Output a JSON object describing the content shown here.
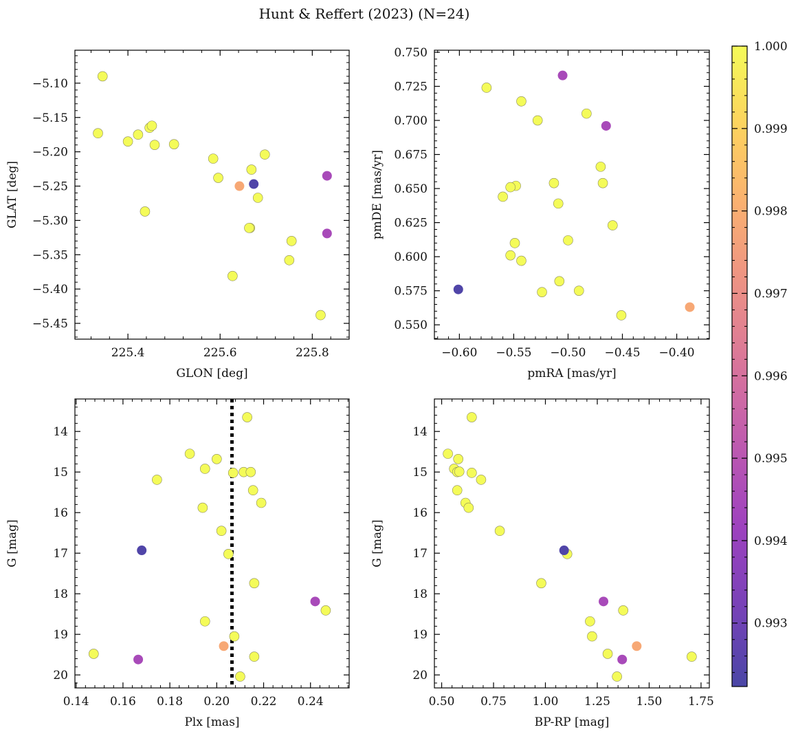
{
  "figure": {
    "title": "Hunt & Reffert (2023) (N=24)"
  },
  "colorbar": {
    "cmap": "plasma",
    "alpha": 0.75,
    "range": [
      0.99223,
      1.0
    ],
    "ticks": [
      0.993,
      0.994,
      0.995,
      0.996,
      0.997,
      0.998,
      0.999,
      1.0
    ],
    "tick_labels": [
      "0.993",
      "0.994",
      "0.995",
      "0.996",
      "0.997",
      "0.998",
      "0.999",
      "1.000"
    ]
  },
  "chart_data": [
    {
      "type": "scatter",
      "id": "glon-glat",
      "xlabel": "GLON [deg]",
      "ylabel": "GLAT [deg]",
      "xlim": [
        225.285,
        225.88
      ],
      "ylim": [
        -5.473,
        -5.052
      ],
      "y_inverted": false,
      "xticks": [
        225.4,
        225.6,
        225.8
      ],
      "xtick_labels": [
        "225.4",
        "225.6",
        "225.8"
      ],
      "yticks": [
        -5.1,
        -5.15,
        -5.2,
        -5.25,
        -5.3,
        -5.35,
        -5.4,
        -5.45
      ],
      "ytick_labels": [
        "−5.10",
        "−5.15",
        "−5.20",
        "−5.25",
        "−5.30",
        "−5.35",
        "−5.40",
        "−5.45"
      ],
      "x": [
        225.345,
        225.335,
        225.422,
        225.4,
        225.447,
        225.452,
        225.458,
        225.5,
        225.585,
        225.596,
        225.697,
        225.668,
        225.682,
        225.437,
        225.665,
        225.642,
        225.673,
        225.832,
        225.832,
        225.755,
        225.75,
        225.627,
        225.818,
        225.663
      ],
      "y": [
        -5.09,
        -5.173,
        -5.175,
        -5.185,
        -5.165,
        -5.162,
        -5.19,
        -5.189,
        -5.21,
        -5.238,
        -5.204,
        -5.226,
        -5.267,
        -5.287,
        -5.311,
        -5.25,
        -5.247,
        -5.235,
        -5.319,
        -5.33,
        -5.358,
        -5.381,
        -5.438,
        -5.311
      ],
      "prob": [
        1.0,
        1.0,
        1.0,
        1.0,
        1.0,
        1.0,
        1.0,
        1.0,
        1.0,
        1.0,
        1.0,
        1.0,
        1.0,
        1.0,
        1.0,
        0.99785,
        0.99237,
        0.9945,
        0.9945,
        1.0,
        1.0,
        1.0,
        1.0,
        1.0
      ]
    },
    {
      "type": "scatter",
      "id": "pmra-pmde",
      "xlabel": "pmRA [mas/yr]",
      "ylabel": "pmDE [mas/yr]",
      "xlim": [
        -0.623,
        -0.37
      ],
      "ylim": [
        0.5395,
        0.7515
      ],
      "y_inverted": false,
      "xticks": [
        -0.6,
        -0.55,
        -0.5,
        -0.45,
        -0.4
      ],
      "xtick_labels": [
        "−0.60",
        "−0.55",
        "−0.50",
        "−0.45",
        "−0.40"
      ],
      "yticks": [
        0.55,
        0.575,
        0.6,
        0.625,
        0.65,
        0.675,
        0.7,
        0.725,
        0.75
      ],
      "ytick_labels": [
        "0.550",
        "0.575",
        "0.600",
        "0.625",
        "0.650",
        "0.675",
        "0.700",
        "0.725",
        "0.750"
      ],
      "x": [
        -0.575,
        -0.543,
        -0.528,
        -0.483,
        -0.47,
        -0.468,
        -0.513,
        -0.548,
        -0.553,
        -0.56,
        -0.509,
        -0.459,
        -0.5,
        -0.549,
        -0.553,
        -0.543,
        -0.508,
        -0.524,
        -0.49,
        -0.451,
        -0.505,
        -0.465,
        -0.601,
        -0.388
      ],
      "y": [
        0.724,
        0.714,
        0.7,
        0.705,
        0.666,
        0.654,
        0.654,
        0.652,
        0.651,
        0.644,
        0.639,
        0.623,
        0.612,
        0.61,
        0.601,
        0.597,
        0.582,
        0.574,
        0.575,
        0.557,
        0.733,
        0.696,
        0.576,
        0.563
      ],
      "prob": [
        1.0,
        1.0,
        1.0,
        1.0,
        1.0,
        1.0,
        1.0,
        1.0,
        1.0,
        1.0,
        1.0,
        1.0,
        1.0,
        1.0,
        1.0,
        1.0,
        1.0,
        1.0,
        1.0,
        1.0,
        0.9945,
        0.9945,
        0.99237,
        0.99785
      ]
    },
    {
      "type": "scatter",
      "id": "plx-g",
      "xlabel": "Plx [mas]",
      "ylabel": "G [mag]",
      "xlim": [
        0.1395,
        0.2565
      ],
      "ylim": [
        13.2,
        20.32
      ],
      "y_inverted": true,
      "xticks": [
        0.14,
        0.16,
        0.18,
        0.2,
        0.22,
        0.24
      ],
      "xtick_labels": [
        "0.14",
        "0.16",
        "0.18",
        "0.20",
        "0.22",
        "0.24"
      ],
      "yticks": [
        14,
        15,
        16,
        17,
        18,
        19,
        20
      ],
      "ytick_labels": [
        "14",
        "15",
        "16",
        "17",
        "18",
        "19",
        "20"
      ],
      "vline": 0.2065,
      "x": [
        0.213,
        0.1885,
        0.2,
        0.195,
        0.207,
        0.2115,
        0.2145,
        0.1745,
        0.2155,
        0.219,
        0.194,
        0.202,
        0.205,
        0.216,
        0.2465,
        0.195,
        0.2075,
        0.1475,
        0.216,
        0.21,
        0.168,
        0.242,
        0.203,
        0.1665
      ],
      "y": [
        13.65,
        14.55,
        14.68,
        14.92,
        15.02,
        15.0,
        15.0,
        15.19,
        15.45,
        15.76,
        15.88,
        16.45,
        17.02,
        17.74,
        18.41,
        18.68,
        19.05,
        19.48,
        19.55,
        20.04,
        16.93,
        18.19,
        19.29,
        19.62
      ],
      "prob": [
        1.0,
        1.0,
        1.0,
        1.0,
        1.0,
        1.0,
        1.0,
        1.0,
        1.0,
        1.0,
        1.0,
        1.0,
        1.0,
        1.0,
        1.0,
        1.0,
        1.0,
        1.0,
        1.0,
        1.0,
        0.99237,
        0.9945,
        0.99785,
        0.9945
      ]
    },
    {
      "type": "scatter",
      "id": "bprp-g",
      "xlabel": "BP-RP [mag]",
      "ylabel": "G [mag]",
      "xlim": [
        0.465,
        1.79
      ],
      "ylim": [
        13.2,
        20.32
      ],
      "y_inverted": true,
      "xticks": [
        0.5,
        0.75,
        1.0,
        1.25,
        1.5,
        1.75
      ],
      "xtick_labels": [
        "0.50",
        "0.75",
        "1.00",
        "1.25",
        "1.50",
        "1.75"
      ],
      "yticks": [
        14,
        15,
        16,
        17,
        18,
        19,
        20
      ],
      "ytick_labels": [
        "14",
        "15",
        "16",
        "17",
        "18",
        "19",
        "20"
      ],
      "x": [
        0.645,
        0.53,
        0.58,
        0.56,
        0.575,
        0.585,
        0.645,
        0.69,
        0.575,
        0.615,
        0.63,
        0.78,
        1.105,
        0.98,
        1.215,
        1.375,
        1.225,
        1.3,
        1.345,
        1.705,
        1.09,
        1.28,
        1.44,
        1.37
      ],
      "y": [
        13.65,
        14.55,
        14.68,
        14.92,
        15.0,
        14.99,
        15.02,
        15.19,
        15.45,
        15.76,
        15.88,
        16.45,
        17.02,
        17.74,
        18.68,
        18.41,
        19.05,
        19.48,
        20.04,
        19.55,
        16.93,
        18.19,
        19.29,
        19.62
      ],
      "prob": [
        1.0,
        1.0,
        1.0,
        1.0,
        1.0,
        1.0,
        1.0,
        1.0,
        1.0,
        1.0,
        1.0,
        1.0,
        1.0,
        1.0,
        1.0,
        1.0,
        1.0,
        1.0,
        1.0,
        1.0,
        0.99237,
        0.9945,
        0.99785,
        0.9945
      ]
    }
  ]
}
